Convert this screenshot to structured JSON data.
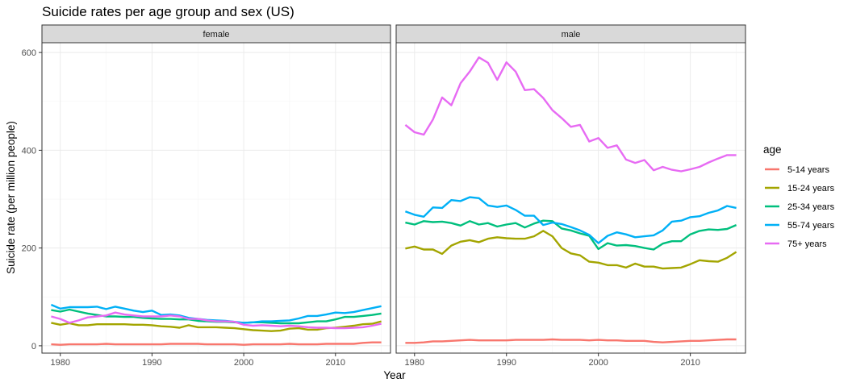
{
  "chart_data": {
    "type": "line",
    "title": "Suicide rates per age group and sex (US)",
    "xlabel": "Year",
    "ylabel": "Suicide rate (per million people)",
    "xlim": [
      1978,
      2016
    ],
    "ylim": [
      -15,
      620
    ],
    "x_ticks": [
      1980,
      1990,
      2000,
      2010
    ],
    "y_ticks": [
      0,
      200,
      400,
      600
    ],
    "grid": true,
    "legend": {
      "title": "age",
      "position": "right"
    },
    "x": [
      1979,
      1980,
      1981,
      1982,
      1983,
      1984,
      1985,
      1986,
      1987,
      1988,
      1989,
      1990,
      1991,
      1992,
      1993,
      1994,
      1995,
      1996,
      1997,
      1998,
      1999,
      2000,
      2001,
      2002,
      2003,
      2004,
      2005,
      2006,
      2007,
      2008,
      2009,
      2010,
      2011,
      2012,
      2013,
      2014,
      2015
    ],
    "panels": [
      {
        "label": "female",
        "series": [
          {
            "name": "5-14 years",
            "color": "#F8766D",
            "values": [
              3,
              2,
              3,
              3,
              3,
              3,
              4,
              3,
              3,
              3,
              3,
              3,
              3,
              4,
              4,
              4,
              4,
              3,
              3,
              3,
              3,
              2,
              3,
              3,
              3,
              3,
              4,
              3,
              3,
              3,
              4,
              4,
              4,
              4,
              6,
              7,
              7
            ]
          },
          {
            "name": "15-24 years",
            "color": "#A3A500",
            "values": [
              47,
              43,
              46,
              42,
              42,
              44,
              44,
              44,
              44,
              43,
              43,
              42,
              40,
              39,
              37,
              42,
              38,
              38,
              38,
              37,
              36,
              34,
              32,
              31,
              30,
              31,
              35,
              36,
              33,
              33,
              36,
              37,
              39,
              41,
              44,
              45,
              50
            ]
          },
          {
            "name": "25-34 years",
            "color": "#00BF7D",
            "values": [
              73,
              70,
              74,
              70,
              66,
              63,
              60,
              60,
              59,
              59,
              57,
              56,
              55,
              55,
              54,
              54,
              51,
              50,
              49,
              49,
              48,
              47,
              48,
              48,
              47,
              46,
              46,
              46,
              48,
              50,
              50,
              54,
              59,
              59,
              61,
              63,
              66
            ]
          },
          {
            "name": "55-74 years",
            "color": "#00B0F6",
            "values": [
              84,
              76,
              79,
              79,
              79,
              80,
              75,
              80,
              76,
              72,
              69,
              72,
              63,
              64,
              62,
              57,
              55,
              53,
              52,
              51,
              49,
              47,
              48,
              50,
              50,
              51,
              52,
              56,
              61,
              61,
              64,
              68,
              67,
              69,
              73,
              77,
              81
            ]
          },
          {
            "name": "75+ years",
            "color": "#E76BF3",
            "values": [
              60,
              55,
              47,
              52,
              58,
              60,
              62,
              68,
              64,
              62,
              60,
              60,
              60,
              62,
              60,
              55,
              55,
              52,
              50,
              50,
              49,
              43,
              41,
              42,
              41,
              40,
              41,
              40,
              38,
              37,
              37,
              36,
              36,
              37,
              38,
              41,
              45
            ]
          }
        ]
      },
      {
        "label": "male",
        "series": [
          {
            "name": "5-14 years",
            "color": "#F8766D",
            "values": [
              6,
              6,
              7,
              9,
              9,
              10,
              11,
              12,
              11,
              11,
              11,
              11,
              12,
              12,
              12,
              12,
              13,
              12,
              12,
              12,
              11,
              12,
              11,
              11,
              10,
              10,
              10,
              8,
              7,
              8,
              9,
              10,
              10,
              11,
              12,
              13,
              13
            ]
          },
          {
            "name": "15-24 years",
            "color": "#A3A500",
            "values": [
              199,
              203,
              197,
              197,
              188,
              205,
              213,
              216,
              212,
              219,
              222,
              220,
              219,
              219,
              224,
              235,
              224,
              200,
              189,
              185,
              172,
              170,
              165,
              165,
              160,
              168,
              162,
              162,
              158,
              159,
              160,
              167,
              175,
              173,
              172,
              180,
              192
            ]
          },
          {
            "name": "25-34 years",
            "color": "#00BF7D",
            "values": [
              252,
              248,
              255,
              253,
              254,
              251,
              246,
              255,
              248,
              251,
              244,
              248,
              251,
              242,
              250,
              256,
              255,
              240,
              236,
              230,
              225,
              198,
              210,
              205,
              206,
              204,
              200,
              197,
              209,
              214,
              214,
              228,
              235,
              238,
              237,
              239,
              247
            ]
          },
          {
            "name": "55-74 years",
            "color": "#00B0F6",
            "values": [
              275,
              268,
              264,
              283,
              282,
              298,
              296,
              304,
              302,
              287,
              284,
              287,
              278,
              266,
              266,
              247,
              252,
              249,
              243,
              236,
              227,
              210,
              225,
              232,
              228,
              222,
              224,
              226,
              236,
              254,
              256,
              263,
              265,
              272,
              277,
              286,
              282
            ]
          },
          {
            "name": "75+ years",
            "color": "#E76BF3",
            "values": [
              452,
              437,
              432,
              463,
              508,
              492,
              537,
              561,
              590,
              579,
              544,
              580,
              561,
              523,
              525,
              507,
              482,
              466,
              448,
              452,
              418,
              425,
              405,
              410,
              381,
              374,
              380,
              359,
              366,
              360,
              357,
              361,
              366,
              375,
              383,
              390,
              390
            ]
          }
        ]
      }
    ]
  }
}
